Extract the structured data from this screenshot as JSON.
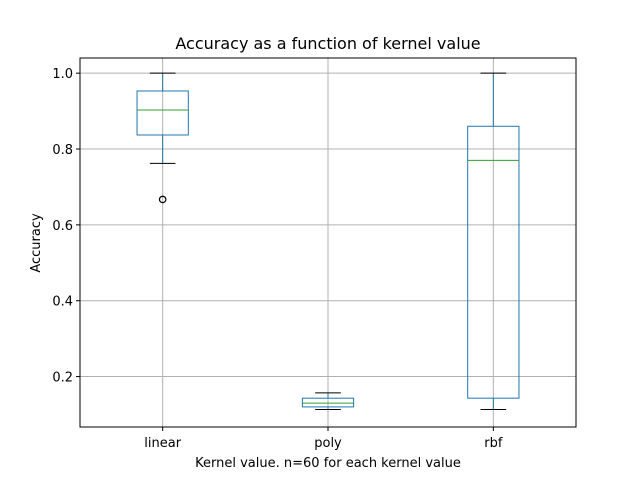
{
  "chart_data": {
    "type": "boxplot",
    "title": "Accuracy as a function of kernel value",
    "xlabel": "Kernel value. n=60 for each kernel value",
    "ylabel": "Accuracy",
    "ylim": [
      0.067,
      1.04
    ],
    "yticks": [
      0.2,
      0.4,
      0.6,
      0.8,
      1.0
    ],
    "ytick_labels": [
      "0.2",
      "0.4",
      "0.6",
      "0.8",
      "1.0"
    ],
    "grid": true,
    "colors": {
      "box": "#1f77b4",
      "median": "#2ca02c",
      "whisker": "#000000"
    },
    "categories": [
      "linear",
      "poly",
      "rbf"
    ],
    "boxes": [
      {
        "label": "linear",
        "whislo": 0.762,
        "q1": 0.837,
        "med": 0.903,
        "q3": 0.953,
        "whishi": 1.0,
        "fliers": [
          0.667
        ]
      },
      {
        "label": "poly",
        "whislo": 0.113,
        "q1": 0.12,
        "med": 0.13,
        "q3": 0.143,
        "whishi": 0.157,
        "fliers": []
      },
      {
        "label": "rbf",
        "whislo": 0.113,
        "q1": 0.143,
        "med": 0.77,
        "q3": 0.86,
        "whishi": 1.0,
        "fliers": []
      }
    ]
  }
}
